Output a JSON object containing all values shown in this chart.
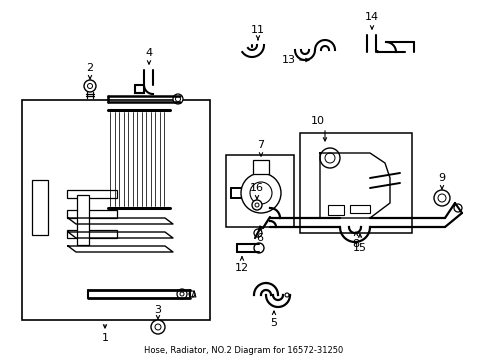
{
  "bg_color": "#ffffff",
  "line_color": "#000000",
  "fig_width": 4.89,
  "fig_height": 3.6,
  "dpi": 100,
  "subtitle": "Hose, Radiator, NO.2 Diagram for 16572-31250"
}
